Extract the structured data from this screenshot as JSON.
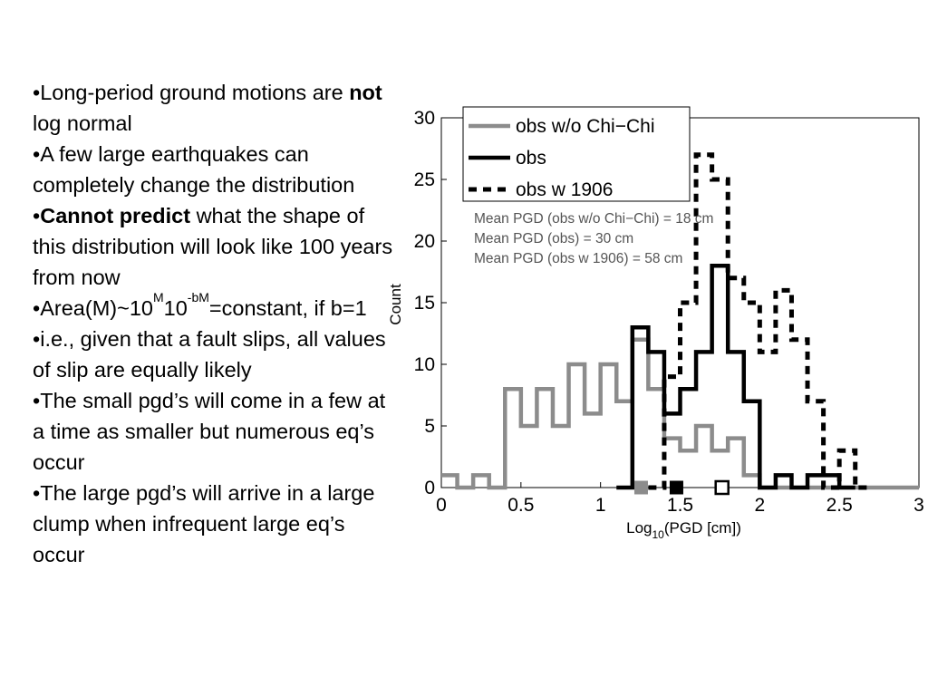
{
  "bullets": [
    {
      "segments": [
        {
          "t": "•Long-period ground motions are "
        },
        {
          "t": "not",
          "bold": true
        },
        {
          "t": " log normal"
        }
      ]
    },
    {
      "segments": [
        {
          "t": "•A few large earthquakes can completely change the distribution"
        }
      ]
    },
    {
      "segments": [
        {
          "t": "•"
        },
        {
          "t": "Cannot predict",
          "bold": true
        },
        {
          "t": " what the shape of this distribution will look like 100 years from now"
        }
      ]
    },
    {
      "segments": [
        {
          "t": "•Area(M)~10"
        },
        {
          "t": "M",
          "sup": true
        },
        {
          "t": "10"
        },
        {
          "t": "-bM",
          "sup": true
        },
        {
          "t": "=constant, if b=1"
        }
      ]
    },
    {
      "segments": [
        {
          "t": "•i.e., given that a fault slips, all values of slip are equally likely"
        }
      ]
    },
    {
      "segments": [
        {
          "t": "•The small pgd’s will come in a few at a time as smaller but numerous eq’s occur"
        }
      ]
    },
    {
      "segments": [
        {
          "t": "•The large pgd’s will arrive in a large clump when infrequent large eq’s occur"
        }
      ]
    }
  ],
  "chart_data": {
    "type": "histogram",
    "xlabel": {
      "main": "Log",
      "sub": "10",
      "rest": "(PGD [cm])"
    },
    "ylabel": "Count",
    "xlim": [
      0,
      3
    ],
    "ylim": [
      0,
      30
    ],
    "xticks": [
      0,
      0.5,
      1,
      1.5,
      2,
      2.5,
      3
    ],
    "xtick_labels": [
      "0",
      "0.5",
      "1",
      "1.5",
      "2",
      "2.5",
      "3"
    ],
    "yticks": [
      0,
      5,
      10,
      15,
      20,
      25,
      30
    ],
    "ytick_labels": [
      "0",
      "5",
      "10",
      "15",
      "20",
      "25",
      "30"
    ],
    "bin_edges": [
      0,
      0.1,
      0.2,
      0.3,
      0.4,
      0.5,
      0.6,
      0.7,
      0.8,
      0.9,
      1.0,
      1.1,
      1.2,
      1.3,
      1.4,
      1.5,
      1.6,
      1.7,
      1.8,
      1.9,
      2.0,
      2.1,
      2.2,
      2.3,
      2.4,
      2.5,
      2.6,
      2.7,
      2.8,
      2.9,
      3.0
    ],
    "series": [
      {
        "name": "obs w/o Chi−Chi",
        "color": "#8c8c8c",
        "dash": "solid",
        "counts": [
          1,
          0,
          1,
          0,
          8,
          5,
          8,
          5,
          10,
          6,
          10,
          7,
          12,
          8,
          4,
          3,
          5,
          3,
          4,
          1,
          0,
          0,
          0,
          0,
          0,
          0,
          0,
          0,
          0,
          0
        ]
      },
      {
        "name": "obs",
        "color": "#000000",
        "dash": "solid",
        "counts": [
          0,
          0,
          0,
          0,
          0,
          0,
          0,
          0,
          0,
          0,
          0,
          0,
          13,
          11,
          6,
          8,
          11,
          18,
          11,
          7,
          0,
          1,
          0,
          1,
          1,
          0,
          0,
          0,
          0,
          0
        ]
      },
      {
        "name": "obs w 1906",
        "color": "#000000",
        "dash": "dashed",
        "counts": [
          0,
          0,
          0,
          0,
          0,
          0,
          0,
          0,
          0,
          0,
          0,
          0,
          0,
          0,
          9,
          15,
          27,
          25,
          17,
          15,
          11,
          16,
          12,
          7,
          0,
          3,
          0,
          0,
          0,
          0
        ]
      }
    ],
    "means": [
      {
        "label": "Mean PGD (obs w/o Chi−Chi) = 18 cm",
        "log10": 1.255,
        "color": "#8c8c8c",
        "style": "filled"
      },
      {
        "label": "Mean PGD (obs) = 30 cm",
        "log10": 1.477,
        "color": "#000000",
        "style": "filled"
      },
      {
        "label": "Mean PGD (obs w 1906) = 58 cm",
        "log10": 1.763,
        "color": "#000000",
        "style": "open"
      }
    ],
    "legend_position": "top-right",
    "grid": false
  }
}
